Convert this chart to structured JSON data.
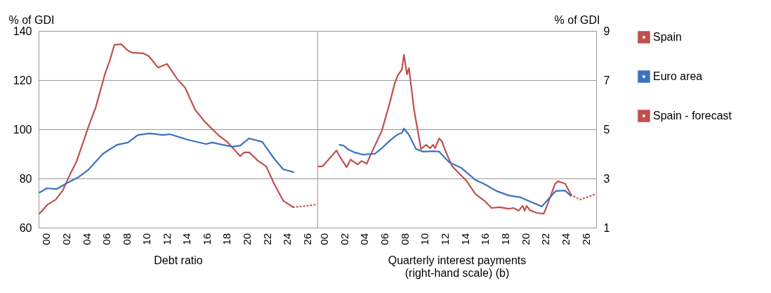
{
  "chart_data": [
    {
      "type": "line",
      "xlabel": "Debt ratio",
      "ylabel": "% of GDI",
      "xlim": [
        1999.2,
        2027
      ],
      "ylim": [
        60,
        140
      ],
      "yticks": [
        60,
        80,
        100,
        120,
        140
      ],
      "xticks": [
        {
          "value": 2000,
          "label": "00"
        },
        {
          "value": 2002,
          "label": "02"
        },
        {
          "value": 2004,
          "label": "04"
        },
        {
          "value": 2006,
          "label": "06"
        },
        {
          "value": 2008,
          "label": "08"
        },
        {
          "value": 2010,
          "label": "10"
        },
        {
          "value": 2012,
          "label": "12"
        },
        {
          "value": 2014,
          "label": "14"
        },
        {
          "value": 2016,
          "label": "16"
        },
        {
          "value": 2018,
          "label": "18"
        },
        {
          "value": 2020,
          "label": "20"
        },
        {
          "value": 2022,
          "label": "22"
        },
        {
          "value": 2024,
          "label": "24"
        },
        {
          "value": 2026,
          "label": "26"
        }
      ],
      "grid": "y",
      "line_style": "solid",
      "series": [
        {
          "color": "#c0504d",
          "x": [
            1999.3,
            2000.1,
            2000.9,
            2001.6,
            2002.3,
            2003,
            2004.2,
            2004.9,
            2005.8,
            2006.3,
            2006.75,
            2007.45,
            2008.1,
            2008.6,
            2009.6,
            2010.2,
            2011.1,
            2012,
            2013.1,
            2013.8,
            2014.8,
            2015.7,
            2017.1,
            2018,
            2019.3,
            2019.7,
            2020.2,
            2021.1,
            2021.9,
            2022.7,
            2023.6,
            2024.6
          ],
          "values": [
            65.7,
            69.4,
            71.4,
            75.1,
            81.4,
            87.1,
            101.4,
            109,
            122.3,
            128,
            134.3,
            134.6,
            132,
            131.1,
            130.9,
            129.7,
            125.1,
            126.6,
            120,
            117,
            108,
            103.4,
            97.7,
            94.9,
            89.1,
            90.6,
            90.6,
            87.1,
            84.9,
            77.7,
            70.9,
            68.3
          ]
        },
        {
          "color": "#3a73c0",
          "x": [
            1999.3,
            2000,
            2001,
            2002.1,
            2003.2,
            2004.2,
            2005.6,
            2007,
            2008.1,
            2009.1,
            2010.3,
            2011.6,
            2012.3,
            2014.1,
            2015.9,
            2016.5,
            2018.5,
            2019.3,
            2020.2,
            2021.5,
            2022.7,
            2023.6,
            2024.6
          ],
          "values": [
            74.3,
            76,
            75.7,
            78.3,
            80.6,
            83.7,
            90,
            93.7,
            94.6,
            97.7,
            98.3,
            97.7,
            98,
            95.7,
            94,
            94.6,
            92.9,
            93.4,
            96.3,
            94.9,
            88,
            83.7,
            82.6
          ]
        },
        {
          "color": "#c0504d",
          "line_style": "dotted",
          "x": [
            2024.6,
            2025.8,
            2026.9
          ],
          "values": [
            68.3,
            68.8,
            69.4
          ]
        }
      ]
    },
    {
      "type": "line",
      "xlabel": "Quarterly interest payments\n(right-hand scale) (b)",
      "ylabel": "% of GDI",
      "xlim": [
        1999.3,
        2027
      ],
      "ylim": [
        1,
        9
      ],
      "yticks": [
        1,
        3,
        5,
        7,
        9
      ],
      "xticks": [
        {
          "value": 2000,
          "label": "00"
        },
        {
          "value": 2002,
          "label": "02"
        },
        {
          "value": 2004,
          "label": "04"
        },
        {
          "value": 2006,
          "label": "06"
        },
        {
          "value": 2008,
          "label": "08"
        },
        {
          "value": 2010,
          "label": "10"
        },
        {
          "value": 2012,
          "label": "12"
        },
        {
          "value": 2014,
          "label": "14"
        },
        {
          "value": 2016,
          "label": "16"
        },
        {
          "value": 2018,
          "label": "18"
        },
        {
          "value": 2020,
          "label": "20"
        },
        {
          "value": 2022,
          "label": "22"
        },
        {
          "value": 2024,
          "label": "24"
        },
        {
          "value": 2026,
          "label": "26"
        }
      ],
      "grid": "y",
      "legend": "right",
      "line_style": "solid",
      "series": [
        {
          "name": "Spain",
          "color": "#c0504d",
          "x": [
            1999.4,
            1999.8,
            2000.6,
            2001.2,
            2001.5,
            2002.2,
            2002.6,
            2003.3,
            2003.7,
            2004.2,
            2004.7,
            2005.7,
            2006.4,
            2007,
            2007.3,
            2007.7,
            2007.9,
            2008.2,
            2008.4,
            2008.9,
            2009.6,
            2010.1,
            2010.5,
            2010.8,
            2011,
            2011.4,
            2011.7,
            2012,
            2012.7,
            2014.1,
            2015,
            2015.9,
            2016.6,
            2017.4,
            2018.3,
            2018.8,
            2019.3,
            2019.7,
            2019.9,
            2020.1,
            2020.4,
            2021.1,
            2021.8,
            2022.3,
            2022.9,
            2023.2,
            2023.6,
            2023.9,
            2024.5
          ],
          "values": [
            3.49,
            3.49,
            3.86,
            4.14,
            3.91,
            3.46,
            3.77,
            3.57,
            3.71,
            3.6,
            4.06,
            4.94,
            5.94,
            6.89,
            7.2,
            7.43,
            8.03,
            7.23,
            7.49,
            5.8,
            4.2,
            4.37,
            4.23,
            4.37,
            4.23,
            4.63,
            4.49,
            4.14,
            3.49,
            2.91,
            2.37,
            2.09,
            1.8,
            1.83,
            1.77,
            1.8,
            1.69,
            1.89,
            1.69,
            1.89,
            1.71,
            1.6,
            1.57,
            2.09,
            2.77,
            2.89,
            2.83,
            2.8,
            2.34
          ]
        },
        {
          "name": "Euro area",
          "color": "#3a73c0",
          "x": [
            2001.5,
            2001.9,
            2002.4,
            2003,
            2003.8,
            2004.7,
            2005,
            2005.7,
            2006.5,
            2007.2,
            2007.7,
            2007.9,
            2008.4,
            2009.1,
            2009.8,
            2010.8,
            2011.4,
            2012.4,
            2013.6,
            2015,
            2015.9,
            2017.1,
            2018.3,
            2019.5,
            2020.8,
            2021.6,
            2022.4,
            2023,
            2023.9,
            2024.5
          ],
          "values": [
            4.37,
            4.34,
            4.17,
            4.06,
            3.97,
            4,
            4,
            4.23,
            4.54,
            4.77,
            4.86,
            5.03,
            4.77,
            4.2,
            4.09,
            4.11,
            4.09,
            3.66,
            3.43,
            2.94,
            2.77,
            2.49,
            2.31,
            2.23,
            2,
            1.86,
            2.23,
            2.49,
            2.51,
            2.29
          ]
        },
        {
          "name": "Spain - forecast",
          "color": "#c0504d",
          "line_style": "dotted",
          "x": [
            2024.5,
            2025.4,
            2026.8
          ],
          "values": [
            2.34,
            2.14,
            2.34
          ]
        }
      ]
    }
  ]
}
